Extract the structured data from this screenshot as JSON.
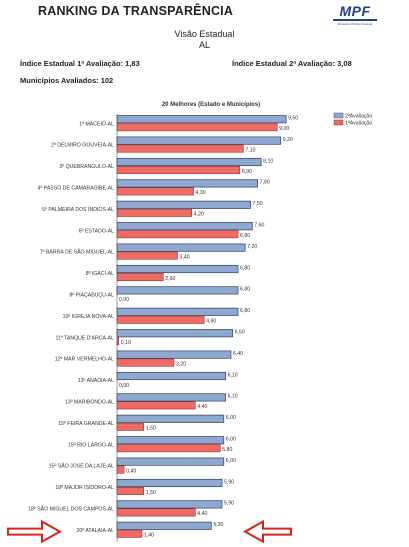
{
  "header": {
    "title": "RANKING DA TRANSPARÊNCIA",
    "logo_text": "MPF",
    "logo_sub": "Ministério Público Federal",
    "visao": "Visão Estadual",
    "estado": "AL",
    "indice1": "Índice Estadual 1ª Avaliação: 1,83",
    "indice2": "Índice Estadual 2ª Avaliação: 3,08",
    "municipios": "Municípios Avaliados: 102"
  },
  "colors": {
    "segunda": "#8ea8cf",
    "primeira": "#ee6a62",
    "arrow": "#d9231a"
  },
  "chart_data": {
    "type": "bar",
    "title": "20 Melhores (Estado e Municípios)",
    "orientation": "horizontal",
    "xlim": [
      0,
      10
    ],
    "legend_position": "top-right",
    "categories": [
      "1º MACEIÓ-AL",
      "2º DELMIRO GOUVEIA-AL",
      "3º QUEBRANGULO-AL",
      "4º PASSO DE CAMARAGIBE-AL",
      "5º PALMEIRA DOS ÍNDIOS-AL",
      "6º ESTADO-AL",
      "7º BARRA DE SÃO MIGUEL-AL",
      "8º IGACI-AL",
      "8º PIAÇABUÇU-AL",
      "10º IGREJA NOVA-AL",
      "11º TANQUE D'ARCA-AL",
      "12º MAR VERMELHO-AL",
      "13º ANADIA-AL",
      "13º MARIBONDO-AL",
      "15º FEIRA GRANDE-AL",
      "15º RIO LARGO-AL",
      "15º SÃO JOSÉ DA LAJE-AL",
      "18º MAJOR ISIDORO-AL",
      "18º SÃO MIGUEL DOS CAMPOS-AL",
      "20º ATALAIA-AL"
    ],
    "series": [
      {
        "name": "2ªAvaliação",
        "values": [
          9.5,
          9.2,
          8.1,
          7.9,
          7.5,
          7.6,
          7.2,
          6.8,
          6.8,
          6.8,
          6.5,
          6.4,
          6.1,
          6.1,
          6.0,
          6.0,
          6.0,
          5.9,
          5.9,
          5.3
        ],
        "labels": [
          "9,50",
          "9,20",
          "8,10",
          "7,90",
          "7,50",
          "7,60",
          "7,20",
          "6,80",
          "6,80",
          "6,80",
          "6,50",
          "6,40",
          "6,10",
          "6,10",
          "6,00",
          "6,00",
          "6,00",
          "5,90",
          "5,90",
          "5,30"
        ]
      },
      {
        "name": "1ªAvaliação",
        "values": [
          9.0,
          7.1,
          6.9,
          4.3,
          4.2,
          6.8,
          3.4,
          2.6,
          0.0,
          4.9,
          0.1,
          3.2,
          0.0,
          4.4,
          1.5,
          5.8,
          0.4,
          1.5,
          4.4,
          1.4
        ],
        "labels": [
          "9,00",
          "7,10",
          "6,90",
          "4,30",
          "4,20",
          "6,80",
          "3,40",
          "2,60",
          "0,00",
          "4,90",
          "0,10",
          "3,20",
          "0,00",
          "4,40",
          "1,50",
          "5,80",
          "0,40",
          "1,50",
          "4,40",
          "1,40"
        ]
      }
    ]
  }
}
